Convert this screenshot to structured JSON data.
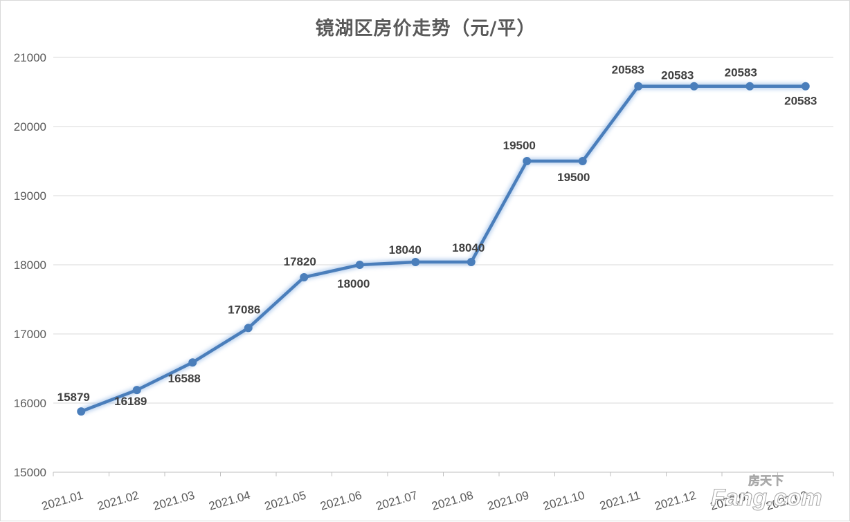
{
  "title": "镜湖区房价走势（元/平）",
  "watermark": {
    "brand_cn": "房天下",
    "brand_en": "Fang.com"
  },
  "colors": {
    "line": "#4a7ebb",
    "grid": "#d9d9d9",
    "axis": "#bfbfbf",
    "text": "#595959"
  },
  "chart_data": {
    "type": "line",
    "title": "镜湖区房价走势（元/平）",
    "categories": [
      "2021.01",
      "2021.02",
      "2021.03",
      "2021.04",
      "2021.05",
      "2021.06",
      "2021.07",
      "2021.08",
      "2021.09",
      "2021.10",
      "2021.11",
      "2021.12",
      "2022.01",
      "2022.02"
    ],
    "values": [
      15879,
      16189,
      16588,
      17086,
      17820,
      18000,
      18040,
      18040,
      19500,
      19500,
      20583,
      20583,
      20583,
      20583
    ],
    "data_labels": [
      "15879",
      "16189",
      "16588",
      "17086",
      "17820",
      "18000",
      "18040",
      "18040",
      "19500",
      "19500",
      "20583",
      "20583",
      "20583",
      "20583"
    ],
    "ylim": [
      15000,
      21000
    ],
    "yticks": [
      "15000",
      "16000",
      "17000",
      "18000",
      "19000",
      "20000",
      "21000"
    ],
    "grid": true,
    "legend": "none"
  }
}
